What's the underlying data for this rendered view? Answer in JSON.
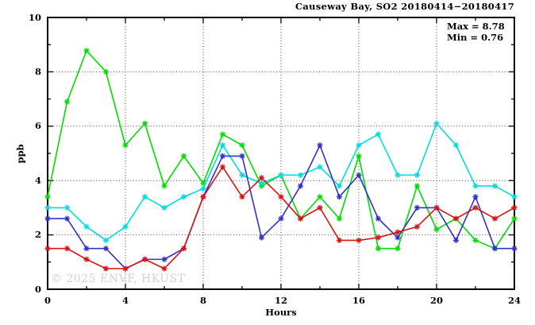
{
  "title": "Causeway Bay, SO2 20180414−20180417",
  "watermark": "© 2025 ENVF, HKUST",
  "annotations": {
    "max_label": "Max = 8.78",
    "min_label": "Min = 0.76"
  },
  "chart_data": {
    "type": "line",
    "title": "Causeway Bay, SO2 20180414−20180417",
    "xlabel": "Hours",
    "ylabel": "ppb",
    "xlim": [
      0,
      24
    ],
    "ylim": [
      0,
      10
    ],
    "grid": "dotted",
    "legend_position": "none",
    "x_major_ticks": [
      0,
      4,
      8,
      12,
      16,
      20,
      24
    ],
    "x_minor_ticks": [
      2,
      6,
      10,
      14,
      18,
      22
    ],
    "y_major_ticks": [
      0,
      2,
      4,
      6,
      8,
      10
    ],
    "y_minor_ticks": [
      1,
      3,
      5,
      7,
      9
    ],
    "grid_x": [
      4,
      8,
      12,
      16,
      20
    ],
    "grid_y": [
      2,
      4,
      6,
      8
    ],
    "stats": {
      "max": 8.78,
      "min": 0.76
    },
    "x": [
      0,
      1,
      2,
      3,
      4,
      5,
      6,
      7,
      8,
      9,
      10,
      11,
      12,
      13,
      14,
      15,
      16,
      17,
      18,
      19,
      20,
      21,
      22,
      23,
      24
    ],
    "series": [
      {
        "name": "green",
        "color": "#00dd00",
        "marker": "star",
        "values": [
          3.4,
          6.9,
          8.78,
          8.0,
          5.3,
          6.1,
          3.8,
          4.9,
          3.9,
          5.7,
          5.3,
          3.8,
          4.2,
          2.6,
          3.4,
          2.6,
          4.9,
          1.5,
          1.5,
          3.8,
          2.2,
          2.6,
          1.8,
          1.5,
          2.6
        ]
      },
      {
        "name": "cyan",
        "color": "#00dddd",
        "marker": "star",
        "values": [
          3.0,
          3.0,
          2.3,
          1.8,
          2.3,
          3.4,
          3.0,
          3.4,
          3.7,
          5.3,
          4.2,
          3.9,
          4.2,
          4.2,
          4.5,
          3.8,
          5.3,
          5.7,
          4.2,
          4.2,
          6.1,
          5.3,
          3.8,
          3.8,
          3.4
        ]
      },
      {
        "name": "blue",
        "color": "#3030cc",
        "marker": "star",
        "values": [
          2.6,
          2.6,
          1.5,
          1.5,
          0.76,
          1.1,
          1.1,
          1.5,
          3.4,
          4.9,
          4.9,
          1.9,
          2.6,
          3.8,
          5.3,
          3.4,
          4.2,
          2.6,
          1.9,
          3.0,
          3.0,
          1.8,
          3.4,
          1.5,
          1.5
        ]
      },
      {
        "name": "red",
        "color": "#dd1111",
        "marker": "star",
        "values": [
          1.5,
          1.5,
          1.1,
          0.76,
          0.76,
          1.1,
          0.76,
          1.5,
          3.4,
          4.5,
          3.4,
          4.1,
          3.4,
          2.6,
          3.0,
          1.8,
          1.8,
          1.9,
          2.1,
          2.3,
          3.0,
          2.6,
          3.0,
          2.6,
          3.0
        ]
      }
    ]
  }
}
